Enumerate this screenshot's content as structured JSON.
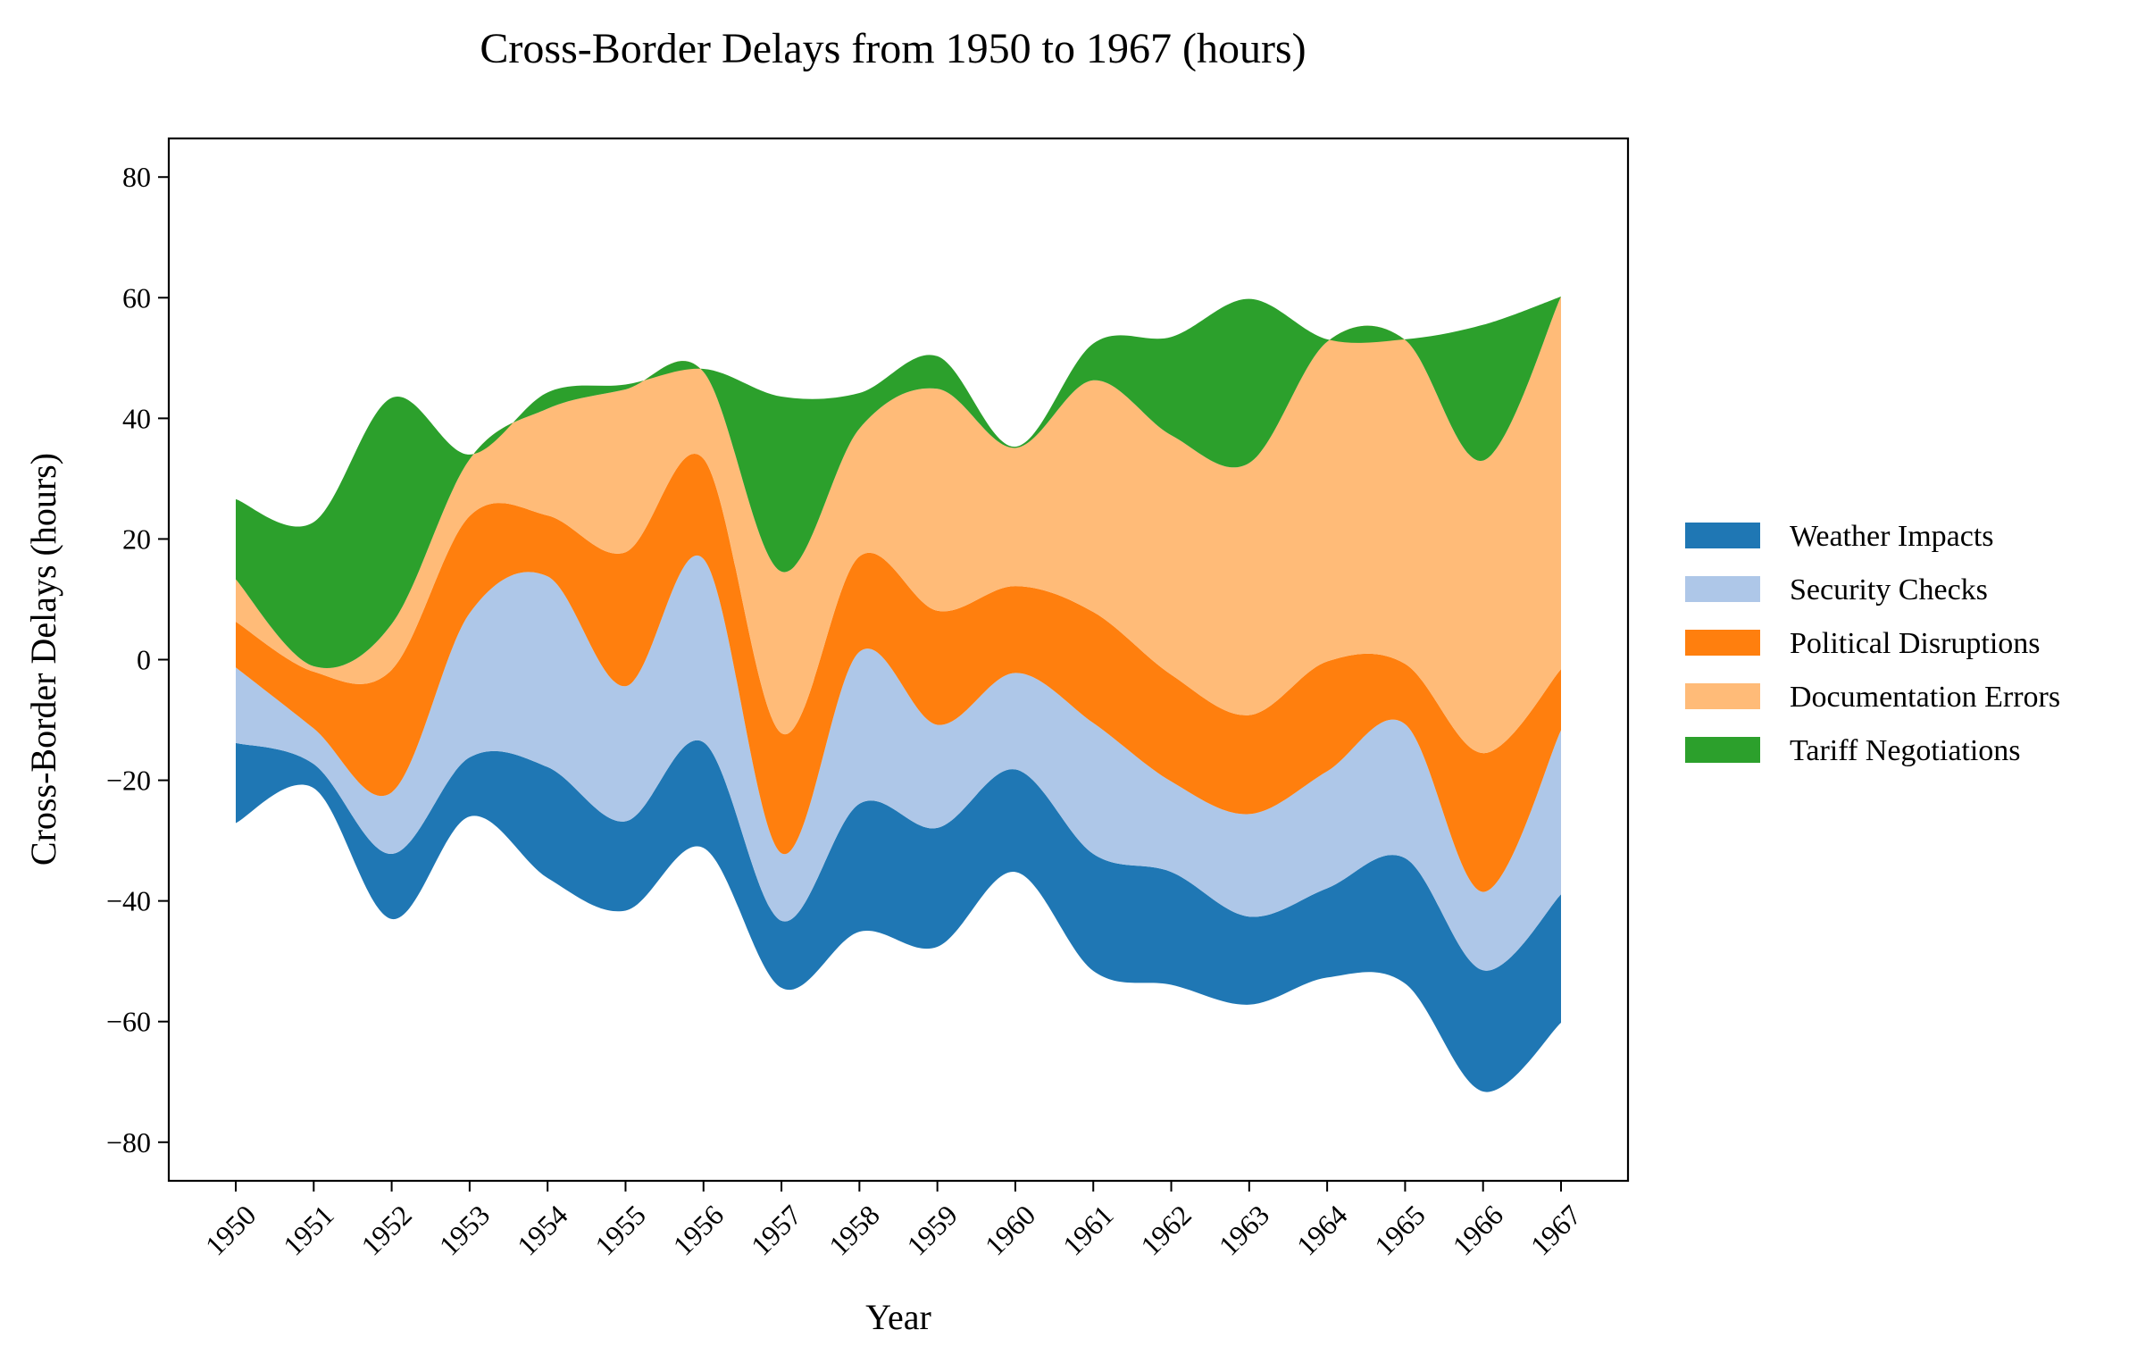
{
  "chart_data": {
    "type": "area",
    "style": "streamgraph",
    "title": "Cross-Border Delays from 1950 to 1967 (hours)",
    "xlabel": "Year",
    "ylabel": "Cross-Border Delays (hours)",
    "x": [
      1950,
      1951,
      1952,
      1953,
      1954,
      1955,
      1956,
      1957,
      1958,
      1959,
      1960,
      1961,
      1962,
      1963,
      1964,
      1965,
      1966,
      1967
    ],
    "x_tick_labels": [
      "1950",
      "1951",
      "1952",
      "1953",
      "1954",
      "1955",
      "1956",
      "1957",
      "1958",
      "1959",
      "1960",
      "1961",
      "1962",
      "1963",
      "1964",
      "1965",
      "1966",
      "1967"
    ],
    "ylim": [
      -86.4,
      86.4
    ],
    "y_ticks": [
      -80,
      -60,
      -40,
      -20,
      0,
      20,
      40,
      60,
      80
    ],
    "y_tick_labels": [
      "−80",
      "−60",
      "−40",
      "−20",
      "0",
      "20",
      "40",
      "60",
      "80"
    ],
    "baseline": [
      -27.1,
      -21.3,
      -43.0,
      -26.0,
      -36.2,
      -41.6,
      -31.2,
      -54.4,
      -45.1,
      -47.6,
      -35.2,
      -51.6,
      -53.9,
      -57.2,
      -52.7,
      -53.7,
      -71.6,
      -60.2
    ],
    "series": [
      {
        "name": "Weather Impacts",
        "color": "#1f77b4",
        "values": [
          13.3,
          4.0,
          10.8,
          9.8,
          18.4,
          14.8,
          17.5,
          11.1,
          21.2,
          19.7,
          17.0,
          19.4,
          18.7,
          14.6,
          14.8,
          20.8,
          20.1,
          21.3
        ]
      },
      {
        "name": "Security Checks",
        "color": "#aec7e8",
        "values": [
          12.5,
          5.9,
          10.2,
          23.9,
          31.6,
          22.4,
          30.4,
          11.2,
          25.2,
          17.1,
          16.0,
          21.7,
          15.0,
          17.0,
          19.4,
          22.2,
          13.0,
          27.2
        ]
      },
      {
        "name": "Political Disruptions",
        "color": "#ff7f0e",
        "values": [
          7.6,
          9.4,
          20.3,
          16.1,
          10.1,
          22.2,
          16.6,
          19.9,
          15.8,
          18.9,
          14.4,
          18.4,
          17.7,
          16.4,
          18.2,
          10.0,
          23.0,
          10.1
        ]
      },
      {
        "name": "Documentation Errors",
        "color": "#ffbb78",
        "values": [
          7.0,
          0.9,
          7.6,
          9.4,
          17.7,
          27.0,
          14.4,
          26.8,
          21.2,
          36.8,
          22.9,
          38.4,
          39.7,
          41.8,
          53.0,
          53.7,
          48.5,
          61.8
        ]
      },
      {
        "name": "Tariff Negotiations",
        "color": "#2ca02c",
        "values": [
          13.3,
          23.9,
          37.5,
          0.8,
          2.7,
          0.8,
          0.5,
          29.0,
          5.9,
          5.4,
          0.2,
          6.1,
          16.3,
          27.2,
          0.4,
          0.1,
          22.5,
          0.0
        ]
      }
    ],
    "legend": {
      "position": "right",
      "entries": [
        "Weather Impacts",
        "Security Checks",
        "Political Disruptions",
        "Documentation Errors",
        "Tariff Negotiations"
      ]
    },
    "grid": false
  }
}
